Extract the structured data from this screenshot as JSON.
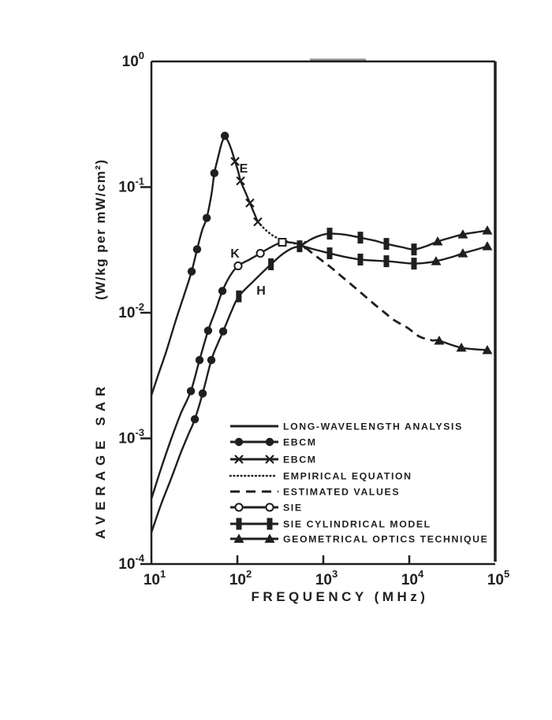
{
  "figure": {
    "background": "#ffffff",
    "ink": "#1f1f1f",
    "description": "Scanned journal figure: whole-body average SAR versus frequency for E, K and H polarizations"
  },
  "chart_data": {
    "type": "line",
    "title": "",
    "xlabel": "FREQUENCY (MHz)",
    "ylabel": "AVERAGE SAR (W/kg per mW/cm²)",
    "ylabel_name": "AVERAGE SAR",
    "ylabel_units": "(W/kg per mW/cm²)",
    "x_axis": {
      "scale": "log",
      "min": 10,
      "max": 100000,
      "tick_base": "10",
      "tick_exponents": [
        "1",
        "2",
        "3",
        "4",
        "5"
      ]
    },
    "y_axis": {
      "scale": "log",
      "min": 0.0001,
      "max": 1,
      "tick_base": "10",
      "tick_exponents": [
        "0",
        "-1",
        "-2",
        "-3",
        "-4"
      ]
    },
    "grid": false,
    "legend_position": "inside-lower-right",
    "curve_labels": [
      {
        "text": "E",
        "f": 118,
        "sar": 0.145
      },
      {
        "text": "K",
        "f": 92,
        "sar": 0.031
      },
      {
        "text": "H",
        "f": 182,
        "sar": 0.0152
      }
    ],
    "series": [
      {
        "name": "e-rise",
        "polarization": "E",
        "line": "solid",
        "points": [
          [
            10,
            0.0022
          ],
          [
            12,
            0.0032
          ],
          [
            15,
            0.005
          ],
          [
            19,
            0.0085
          ],
          [
            24,
            0.0138
          ],
          [
            29.4,
            0.0213
          ],
          [
            34,
            0.032
          ],
          [
            39,
            0.0455
          ],
          [
            44,
            0.0568
          ],
          [
            50,
            0.088
          ],
          [
            54,
            0.129
          ],
          [
            60,
            0.175
          ],
          [
            66,
            0.225
          ],
          [
            71.5,
            0.256
          ]
        ],
        "markers": [
          {
            "type": "circle",
            "points": [
              [
                29.4,
                0.0213
              ],
              [
                34,
                0.032
              ],
              [
                44,
                0.0568
              ],
              [
                54,
                0.129
              ],
              [
                71.5,
                0.256
              ]
            ]
          }
        ]
      },
      {
        "name": "e-fall",
        "polarization": "E",
        "line": "solid",
        "points": [
          [
            71.5,
            0.256
          ],
          [
            78,
            0.232
          ],
          [
            85,
            0.2
          ],
          [
            94,
            0.16
          ],
          [
            102,
            0.134
          ],
          [
            109,
            0.112
          ],
          [
            124,
            0.091
          ],
          [
            140,
            0.0747
          ],
          [
            156,
            0.0625
          ],
          [
            173,
            0.0529
          ]
        ],
        "markers": [
          {
            "type": "x",
            "points": [
              [
                94,
                0.16
              ],
              [
                109,
                0.112
              ],
              [
                140,
                0.0747
              ],
              [
                173,
                0.0529
              ]
            ]
          }
        ]
      },
      {
        "name": "e-empirical",
        "polarization": "E",
        "line": "dotted",
        "points": [
          [
            173,
            0.0529
          ],
          [
            205,
            0.0468
          ],
          [
            245,
            0.0422
          ],
          [
            300,
            0.039
          ],
          [
            380,
            0.0368
          ],
          [
            470,
            0.0355
          ],
          [
            565,
            0.0345
          ]
        ],
        "markers": [
          {
            "type": "x",
            "points": [
              [
                565,
                0.0345
              ]
            ]
          }
        ]
      },
      {
        "name": "k-curve",
        "polarization": "K",
        "line": "solid",
        "points": [
          [
            10,
            0.00033
          ],
          [
            13,
            0.00058
          ],
          [
            17,
            0.00099
          ],
          [
            22,
            0.00158
          ],
          [
            28.8,
            0.00238
          ],
          [
            36.3,
            0.0042
          ],
          [
            45.7,
            0.0072
          ],
          [
            56,
            0.0105
          ],
          [
            67,
            0.0149
          ],
          [
            82,
            0.0196
          ],
          [
            102,
            0.0236
          ],
          [
            140,
            0.0266
          ],
          [
            185,
            0.0297
          ],
          [
            250,
            0.0335
          ],
          [
            333,
            0.0364
          ],
          [
            450,
            0.036
          ],
          [
            565,
            0.0345
          ]
        ],
        "markers": [
          {
            "type": "circle",
            "points": [
              [
                28.8,
                0.00238
              ],
              [
                36.3,
                0.0042
              ],
              [
                45.7,
                0.0072
              ],
              [
                67,
                0.0149
              ]
            ]
          },
          {
            "type": "open-circle",
            "points": [
              [
                102,
                0.0236
              ],
              [
                185,
                0.0297
              ]
            ]
          },
          {
            "type": "open-rect",
            "points": [
              [
                333,
                0.0364
              ]
            ]
          }
        ]
      },
      {
        "name": "h-curve",
        "polarization": "H",
        "line": "solid",
        "points": [
          [
            10,
            0.000178
          ],
          [
            13,
            0.0003
          ],
          [
            17,
            0.00048
          ],
          [
            22,
            0.00077
          ],
          [
            27,
            0.00108
          ],
          [
            32,
            0.00142
          ],
          [
            39.5,
            0.00228
          ],
          [
            49.8,
            0.0042
          ],
          [
            60,
            0.0058
          ],
          [
            68.4,
            0.0071
          ],
          [
            85,
            0.0102
          ],
          [
            104,
            0.0135
          ],
          [
            150,
            0.0175
          ],
          [
            246,
            0.0243
          ],
          [
            330,
            0.029
          ],
          [
            430,
            0.0325
          ],
          [
            530,
            0.0338
          ]
        ],
        "markers": [
          {
            "type": "circle",
            "points": [
              [
                32,
                0.00142
              ],
              [
                39.5,
                0.00228
              ],
              [
                49.8,
                0.0042
              ],
              [
                68.4,
                0.0071
              ]
            ]
          },
          {
            "type": "rect",
            "points": [
              [
                104,
                0.0135
              ],
              [
                246,
                0.0243
              ],
              [
                530,
                0.0338
              ]
            ]
          }
        ]
      },
      {
        "name": "upper-branch",
        "polarization": "E/H high-frequency upper branch",
        "line": "solid",
        "points": [
          [
            565,
            0.0345
          ],
          [
            700,
            0.038
          ],
          [
            900,
            0.041
          ],
          [
            1184,
            0.0426
          ],
          [
            1800,
            0.0418
          ],
          [
            2698,
            0.0396
          ],
          [
            4000,
            0.0374
          ],
          [
            5420,
            0.0353
          ],
          [
            8000,
            0.0334
          ],
          [
            11350,
            0.0319
          ],
          [
            16000,
            0.034
          ],
          [
            21400,
            0.0369
          ],
          [
            30000,
            0.0395
          ],
          [
            42000,
            0.042
          ],
          [
            60000,
            0.0437
          ],
          [
            80900,
            0.0451
          ]
        ],
        "markers": [
          {
            "type": "rect",
            "points": [
              [
                1184,
                0.0426
              ],
              [
                2698,
                0.0396
              ],
              [
                5420,
                0.0353
              ],
              [
                11350,
                0.0319
              ]
            ]
          },
          {
            "type": "triangle",
            "points": [
              [
                21400,
                0.0369
              ],
              [
                42000,
                0.042
              ],
              [
                80900,
                0.0451
              ]
            ]
          }
        ]
      },
      {
        "name": "lower-branch",
        "polarization": "E/H high-frequency lower branch",
        "line": "solid",
        "points": [
          [
            565,
            0.034
          ],
          [
            800,
            0.0318
          ],
          [
            1184,
            0.0297
          ],
          [
            1800,
            0.0278
          ],
          [
            2698,
            0.0265
          ],
          [
            4000,
            0.026
          ],
          [
            5420,
            0.0257
          ],
          [
            8000,
            0.0251
          ],
          [
            11350,
            0.0246
          ],
          [
            16000,
            0.025
          ],
          [
            20500,
            0.0257
          ],
          [
            30000,
            0.0275
          ],
          [
            42000,
            0.0297
          ],
          [
            60000,
            0.0318
          ],
          [
            80900,
            0.0338
          ]
        ],
        "markers": [
          {
            "type": "rect",
            "points": [
              [
                1184,
                0.0297
              ],
              [
                2698,
                0.0265
              ],
              [
                5420,
                0.0257
              ],
              [
                11350,
                0.0246
              ]
            ]
          },
          {
            "type": "triangle",
            "points": [
              [
                20500,
                0.0257
              ],
              [
                42000,
                0.0297
              ],
              [
                80900,
                0.0338
              ]
            ]
          }
        ]
      },
      {
        "name": "estimated-values",
        "polarization": "K high-frequency estimate",
        "line": "dashed",
        "points": [
          [
            620,
            0.033
          ],
          [
            750,
            0.0297
          ],
          [
            950,
            0.0262
          ],
          [
            1250,
            0.0227
          ],
          [
            1700,
            0.019
          ],
          [
            2478,
            0.0153
          ],
          [
            3800,
            0.0119
          ],
          [
            5200,
            0.01
          ],
          [
            6700,
            0.0087
          ],
          [
            9500,
            0.0076
          ],
          [
            13200,
            0.00645
          ],
          [
            19000,
            0.006
          ]
        ],
        "markers": []
      },
      {
        "name": "geo-optics-low",
        "polarization": "K high-frequency estimate tail",
        "line": "solid",
        "points": [
          [
            19000,
            0.006
          ],
          [
            22300,
            0.00599
          ],
          [
            40400,
            0.00527
          ],
          [
            80900,
            0.00504
          ]
        ],
        "markers": [
          {
            "type": "triangle",
            "points": [
              [
                22300,
                0.00599
              ],
              [
                40400,
                0.00527
              ],
              [
                80900,
                0.00504
              ]
            ]
          }
        ]
      }
    ],
    "legend": [
      {
        "line": "solid",
        "marker": null,
        "label": "LONG-WAVELENGTH ANALYSIS"
      },
      {
        "line": "solid",
        "marker": "circle",
        "label": "EBCM"
      },
      {
        "line": "solid",
        "marker": "x",
        "label": "EBCM"
      },
      {
        "line": "dotted",
        "marker": null,
        "label": "EMPIRICAL EQUATION"
      },
      {
        "line": "dashed",
        "marker": null,
        "label": "ESTIMATED VALUES"
      },
      {
        "line": "solid",
        "marker": "open-circle",
        "label": "SIE"
      },
      {
        "line": "solid",
        "marker": "rect",
        "label": "SIE CYLINDRICAL MODEL"
      },
      {
        "line": "solid",
        "marker": "triangle",
        "label": "GEOMETRICAL OPTICS TECHNIQUE"
      }
    ]
  }
}
